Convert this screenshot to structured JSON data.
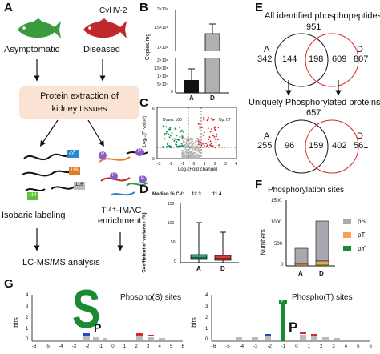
{
  "panel_labels": [
    "A",
    "B",
    "C",
    "D",
    "E",
    "F",
    "G"
  ],
  "panelA": {
    "virus": "CyHV-2",
    "asymptomatic": "Asymptomatic",
    "diseased": "Diseased",
    "box_line1": "Protein extraction of",
    "box_line2": "kidney tissues",
    "tag_labels": [
      "114",
      "116",
      "114",
      "116"
    ],
    "phospho_marker": "P",
    "isobaric": "Isobaric labeling",
    "imac_line1": "Ti⁴⁺-IMAC",
    "imac_line2": "enrichment",
    "lcms": "LC-MS/MS analysis",
    "colors": {
      "fish_asym": "#3a9a3e",
      "fish_dis": "#c0282c",
      "box": "#fbe3d3"
    }
  },
  "panelB": {
    "ylabel": "Copies/mg",
    "yticks": [
      "0",
      "5×10⁷",
      "1×10⁸",
      "1.5×10⁸",
      "2×10⁸",
      "1×10⁹",
      "1.5×10⁹",
      "2×10⁹"
    ],
    "categories": [
      "A",
      "D"
    ],
    "chart_data": {
      "type": "bar",
      "categories": [
        "A",
        "D"
      ],
      "values": [
        15000000,
        1400000000
      ],
      "errors": [
        15000000,
        250000000
      ],
      "ylabel": "Copies/mg",
      "axis_break": true,
      "colors": [
        "#111111",
        "#b0b0b0"
      ]
    }
  },
  "panelC": {
    "xlabel": "Log₂(Fold change)",
    "ylabel": "-Log₁₀(P-value)",
    "down_label": "Down: 105",
    "up_label": "Up: 87",
    "xticks": [
      "-3",
      "-2",
      "-1",
      "0",
      "1",
      "2",
      "3",
      "4"
    ],
    "yticks": [
      "0",
      "1",
      "2",
      "3",
      "4",
      "5",
      "6"
    ],
    "chart_data": {
      "type": "scatter",
      "xlim": [
        -3,
        4
      ],
      "ylim": [
        0,
        6
      ],
      "series": [
        {
          "name": "Down",
          "count": 105,
          "color": "#1f9a56"
        },
        {
          "name": "Up",
          "count": 87,
          "color": "#d8262a"
        }
      ],
      "thresholds": {
        "fold": [
          -0.58,
          0.58
        ],
        "p_value": 1.3
      }
    }
  },
  "panelD": {
    "header_label": "Median % CV:",
    "medians": [
      "12.3",
      "11.4"
    ],
    "ylabel": "Coefficient of variance (%)",
    "yticks": [
      "0",
      "50",
      "100",
      "150"
    ],
    "categories": [
      "A",
      "D"
    ],
    "chart_data": {
      "type": "box",
      "categories": [
        "A",
        "D"
      ],
      "median": [
        12.3,
        11.4
      ],
      "q1": [
        8,
        7
      ],
      "q3": [
        19,
        17
      ],
      "whisker_low": [
        0,
        0
      ],
      "whisker_high": [
        104,
        78
      ],
      "ylim": [
        0,
        150
      ],
      "colors": [
        "#26a66e",
        "#d43b3b"
      ]
    }
  },
  "panelE": {
    "title1": "All identified phosphopeptides",
    "total1": "951",
    "v1": {
      "A_label": "A",
      "A_total": "342",
      "only_A": "144",
      "both": "198",
      "only_D": "609",
      "D_label": "D",
      "D_total": "807"
    },
    "title2": "Uniquely Phosphorylated proteins",
    "total2": "657",
    "v2": {
      "A_label": "A",
      "A_total": "255",
      "only_A": "96",
      "both": "159",
      "only_D": "402",
      "D_label": "D",
      "D_total": "561"
    }
  },
  "panelF": {
    "title": "Phosphorylation sites",
    "ylabel": "Numbers",
    "yticks": [
      "0",
      "500",
      "1000",
      "1500"
    ],
    "categories": [
      "A",
      "D"
    ],
    "legend": [
      "pS",
      "pT",
      "pY"
    ],
    "chart_data": {
      "type": "bar",
      "stacked": true,
      "categories": [
        "A",
        "D"
      ],
      "ylim": [
        0,
        1500
      ],
      "series": [
        {
          "name": "pY",
          "values": [
            5,
            10
          ],
          "color": "#1a8a33"
        },
        {
          "name": "pT",
          "values": [
            40,
            90
          ],
          "color": "#f4a254"
        },
        {
          "name": "pS",
          "values": [
            385,
            920
          ],
          "color": "#a8a8b0"
        }
      ]
    }
  },
  "panelG": {
    "logo1_title": "Phospho(S) sites",
    "logo2_title": "Phospho(T) sites",
    "ylabel": "bits",
    "yticks": [
      "0",
      "1",
      "2",
      "3",
      "4"
    ],
    "xticks": [
      "-6",
      "-5",
      "-4",
      "-3",
      "-2",
      "-1",
      "0",
      "1",
      "2",
      "3",
      "4",
      "5",
      "6"
    ],
    "logo1_center": "S",
    "logo1_next": "P",
    "logo2_center": "T",
    "logo2_next": "P",
    "chart_data": [
      {
        "type": "sequence-logo",
        "center_residue": "S",
        "center_bits": 4.0,
        "plus1": "P",
        "plus1_bits": 0.9
      },
      {
        "type": "sequence-logo",
        "center_residue": "T",
        "center_bits": 4.0,
        "plus1": "P",
        "plus1_bits": 1.1
      }
    ]
  }
}
